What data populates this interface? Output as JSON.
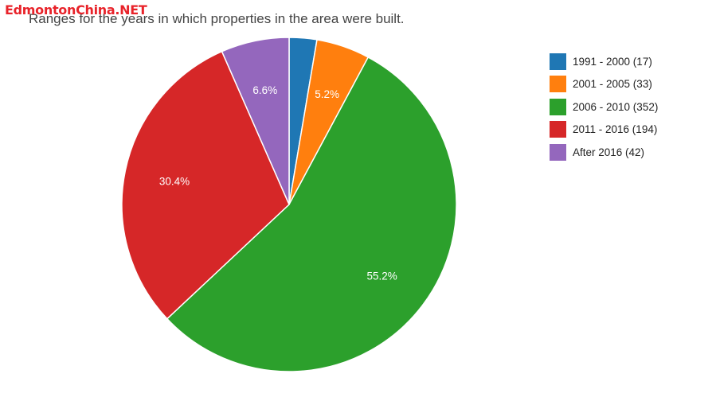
{
  "watermark": {
    "text": "EdmontonChina.NET",
    "color": "#e8232a"
  },
  "chart_data": {
    "type": "pie",
    "title": "",
    "subtitle": "Ranges for the years in which properties in the area were built.",
    "start_angle_deg": 0,
    "direction": "clockwise",
    "legend_position": "right",
    "slices": [
      {
        "label": "1991 - 2000 (17)",
        "value": 17,
        "color": "#1f77b4",
        "pct_label": ""
      },
      {
        "label": "2001 - 2005 (33)",
        "value": 33,
        "color": "#ff7f0e",
        "pct_label": "5.2%"
      },
      {
        "label": "2006 - 2010 (352)",
        "value": 352,
        "color": "#2ca02c",
        "pct_label": "55.2%"
      },
      {
        "label": "2011 - 2016 (194)",
        "value": 194,
        "color": "#d62728",
        "pct_label": "30.4%"
      },
      {
        "label": "After 2016 (42)",
        "value": 42,
        "color": "#9467bd",
        "pct_label": "6.6%"
      }
    ]
  }
}
